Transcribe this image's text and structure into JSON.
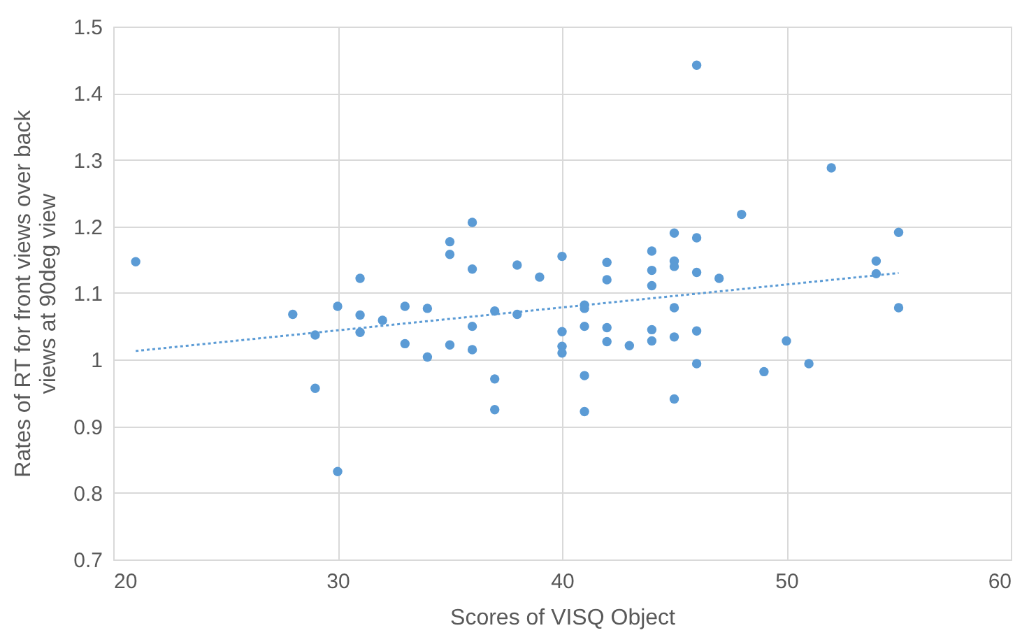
{
  "chart_data": {
    "type": "scatter",
    "xlabel": "Scores of VISQ Object",
    "ylabel": "Rates of RT for front views over back views at 90deg view",
    "xlim": [
      20,
      60
    ],
    "xticks": [
      20,
      30,
      40,
      50,
      60
    ],
    "ylim": [
      0.7,
      1.5
    ],
    "yticks": [
      0.7,
      0.8,
      0.9,
      1,
      1.1,
      1.2,
      1.3,
      1.4,
      1.5
    ],
    "grid": true,
    "series": [
      {
        "marker": "circle",
        "color": "#5b9bd5",
        "x": [
          21,
          28,
          29,
          29,
          30,
          30,
          31,
          31,
          31,
          32,
          33,
          33,
          34,
          34,
          35,
          35,
          35,
          36,
          36,
          36,
          36,
          37,
          37,
          37,
          38,
          38,
          39,
          40,
          40,
          40,
          40,
          41,
          41,
          41,
          41,
          41,
          42,
          42,
          42,
          42,
          43,
          44,
          44,
          44,
          44,
          44,
          45,
          45,
          45,
          45,
          45,
          45,
          46,
          46,
          46,
          46,
          46,
          47,
          48,
          49,
          50,
          51,
          52,
          54,
          54,
          55,
          55
        ],
        "values": [
          1.147,
          1.068,
          1.037,
          0.957,
          1.08,
          0.832,
          1.122,
          1.067,
          1.041,
          1.059,
          1.08,
          1.024,
          1.077,
          1.004,
          1.177,
          1.158,
          1.022,
          1.206,
          1.136,
          1.05,
          1.015,
          1.073,
          0.971,
          0.925,
          1.142,
          1.068,
          1.124,
          1.155,
          1.042,
          1.02,
          1.01,
          1.082,
          1.077,
          1.05,
          0.976,
          0.922,
          1.146,
          1.12,
          1.048,
          1.027,
          1.021,
          1.163,
          1.134,
          1.111,
          1.045,
          1.028,
          1.19,
          1.148,
          1.14,
          1.078,
          1.034,
          0.941,
          1.442,
          1.183,
          1.131,
          1.043,
          0.994,
          1.122,
          1.218,
          0.982,
          1.028,
          0.994,
          1.288,
          1.148,
          1.129,
          1.191,
          1.078
        ]
      },
      {
        "type": "line",
        "color": "#5b9bd5",
        "line_style": "dotted",
        "x": [
          21,
          55
        ],
        "values": [
          1.013,
          1.13
        ]
      }
    ]
  }
}
